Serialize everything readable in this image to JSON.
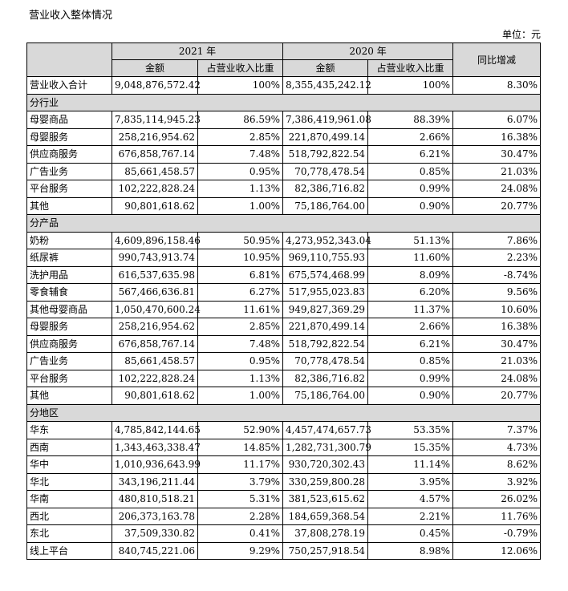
{
  "title": "营业收入整体情况",
  "unit": "单位：元",
  "header": {
    "year_2021": "2021 年",
    "year_2020": "2020 年",
    "amount": "金额",
    "share": "占营业收入比重",
    "yoy": "同比增减"
  },
  "total": {
    "label": "营业收入合计",
    "v2021": "9,048,876,572.42",
    "p2021": "100%",
    "v2020": "8,355,435,242.12",
    "p2020": "100%",
    "yoy": "8.30%"
  },
  "sections": [
    {
      "title": "分行业",
      "rows": [
        {
          "label": "母婴商品",
          "v2021": "7,835,114,945.23",
          "p2021": "86.59%",
          "v2020": "7,386,419,961.08",
          "p2020": "88.39%",
          "yoy": "6.07%"
        },
        {
          "label": "母婴服务",
          "v2021": "258,216,954.62",
          "p2021": "2.85%",
          "v2020": "221,870,499.14",
          "p2020": "2.66%",
          "yoy": "16.38%"
        },
        {
          "label": "供应商服务",
          "v2021": "676,858,767.14",
          "p2021": "7.48%",
          "v2020": "518,792,822.54",
          "p2020": "6.21%",
          "yoy": "30.47%"
        },
        {
          "label": "广告业务",
          "v2021": "85,661,458.57",
          "p2021": "0.95%",
          "v2020": "70,778,478.54",
          "p2020": "0.85%",
          "yoy": "21.03%"
        },
        {
          "label": "平台服务",
          "v2021": "102,222,828.24",
          "p2021": "1.13%",
          "v2020": "82,386,716.82",
          "p2020": "0.99%",
          "yoy": "24.08%"
        },
        {
          "label": "其他",
          "v2021": "90,801,618.62",
          "p2021": "1.00%",
          "v2020": "75,186,764.00",
          "p2020": "0.90%",
          "yoy": "20.77%"
        }
      ]
    },
    {
      "title": "分产品",
      "rows": [
        {
          "label": "奶粉",
          "v2021": "4,609,896,158.46",
          "p2021": "50.95%",
          "v2020": "4,273,952,343.04",
          "p2020": "51.13%",
          "yoy": "7.86%"
        },
        {
          "label": "纸尿裤",
          "v2021": "990,743,913.74",
          "p2021": "10.95%",
          "v2020": "969,110,755.93",
          "p2020": "11.60%",
          "yoy": "2.23%"
        },
        {
          "label": "洗护用品",
          "v2021": "616,537,635.98",
          "p2021": "6.81%",
          "v2020": "675,574,468.99",
          "p2020": "8.09%",
          "yoy": "-8.74%"
        },
        {
          "label": "零食辅食",
          "v2021": "567,466,636.81",
          "p2021": "6.27%",
          "v2020": "517,955,023.83",
          "p2020": "6.20%",
          "yoy": "9.56%"
        },
        {
          "label": "其他母婴商品",
          "v2021": "1,050,470,600.24",
          "p2021": "11.61%",
          "v2020": "949,827,369.29",
          "p2020": "11.37%",
          "yoy": "10.60%"
        },
        {
          "label": "母婴服务",
          "v2021": "258,216,954.62",
          "p2021": "2.85%",
          "v2020": "221,870,499.14",
          "p2020": "2.66%",
          "yoy": "16.38%"
        },
        {
          "label": "供应商服务",
          "v2021": "676,858,767.14",
          "p2021": "7.48%",
          "v2020": "518,792,822.54",
          "p2020": "6.21%",
          "yoy": "30.47%"
        },
        {
          "label": "广告业务",
          "v2021": "85,661,458.57",
          "p2021": "0.95%",
          "v2020": "70,778,478.54",
          "p2020": "0.85%",
          "yoy": "21.03%"
        },
        {
          "label": "平台服务",
          "v2021": "102,222,828.24",
          "p2021": "1.13%",
          "v2020": "82,386,716.82",
          "p2020": "0.99%",
          "yoy": "24.08%"
        },
        {
          "label": "其他",
          "v2021": "90,801,618.62",
          "p2021": "1.00%",
          "v2020": "75,186,764.00",
          "p2020": "0.90%",
          "yoy": "20.77%"
        }
      ]
    },
    {
      "title": "分地区",
      "rows": [
        {
          "label": "华东",
          "v2021": "4,785,842,144.65",
          "p2021": "52.90%",
          "v2020": "4,457,474,657.73",
          "p2020": "53.35%",
          "yoy": "7.37%"
        },
        {
          "label": "西南",
          "v2021": "1,343,463,338.47",
          "p2021": "14.85%",
          "v2020": "1,282,731,300.79",
          "p2020": "15.35%",
          "yoy": "4.73%"
        },
        {
          "label": "华中",
          "v2021": "1,010,936,643.99",
          "p2021": "11.17%",
          "v2020": "930,720,302.43",
          "p2020": "11.14%",
          "yoy": "8.62%"
        },
        {
          "label": "华北",
          "v2021": "343,196,211.44",
          "p2021": "3.79%",
          "v2020": "330,259,800.28",
          "p2020": "3.95%",
          "yoy": "3.92%"
        },
        {
          "label": "华南",
          "v2021": "480,810,518.21",
          "p2021": "5.31%",
          "v2020": "381,523,615.62",
          "p2020": "4.57%",
          "yoy": "26.02%"
        },
        {
          "label": "西北",
          "v2021": "206,373,163.78",
          "p2021": "2.28%",
          "v2020": "184,659,368.54",
          "p2020": "2.21%",
          "yoy": "11.76%"
        },
        {
          "label": "东北",
          "v2021": "37,509,330.82",
          "p2021": "0.41%",
          "v2020": "37,808,278.19",
          "p2020": "0.45%",
          "yoy": "-0.79%"
        },
        {
          "label": "线上平台",
          "v2021": "840,745,221.06",
          "p2021": "9.29%",
          "v2020": "750,257,918.54",
          "p2020": "8.98%",
          "yoy": "12.06%"
        }
      ]
    }
  ]
}
